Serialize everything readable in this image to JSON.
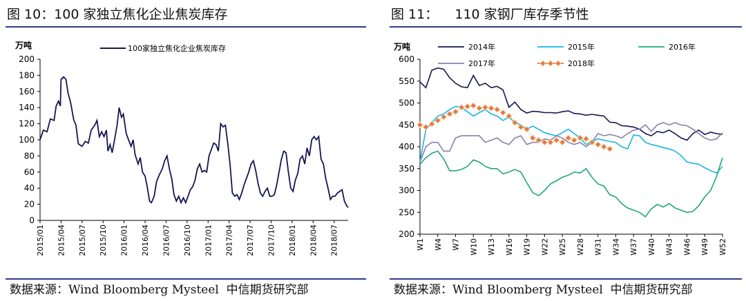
{
  "panels": {
    "left": {
      "figure_title": "图 10：100 家独立焦化企业焦炭库存",
      "source_label": "数据来源：",
      "source_providers": "Wind Bloomberg Mysteel",
      "source_org": "中信期货研究部"
    },
    "right": {
      "figure_title": "图 11：    110 家钢厂库存季节性",
      "source_label": "数据来源：",
      "source_providers": "Wind Bloomberg Mysteel",
      "source_org": "中信期货研究部"
    }
  },
  "colors": {
    "rule": "#2a3a8c",
    "axis": "#000000"
  },
  "chart_data": [
    {
      "type": "line",
      "title": "",
      "ylabel": "万吨",
      "xlabel": "",
      "ylim": [
        0,
        200
      ],
      "yticks": [
        0,
        20,
        40,
        60,
        80,
        100,
        120,
        140,
        160,
        180,
        200
      ],
      "xlim": [
        "2015-01",
        "2018-09"
      ],
      "xtick_labels": [
        "2015/01",
        "2015/04",
        "2015/07",
        "2015/10",
        "2016/01",
        "2016/04",
        "2016/07",
        "2016/10",
        "2017/01",
        "2017/04",
        "2017/07",
        "2017/10",
        "2018/01",
        "2018/04",
        "2018/07"
      ],
      "grid": false,
      "legend_position": "top",
      "series": [
        {
          "name": "100家独立焦化企业焦炭库存",
          "color": "#14154f",
          "points": [
            [
              "2015-01",
              100
            ],
            [
              "2015-01-15",
              112
            ],
            [
              "2015-02",
              110
            ],
            [
              "2015-02-15",
              126
            ],
            [
              "2015-03",
              124
            ],
            [
              "2015-03-10",
              142
            ],
            [
              "2015-03-20",
              148
            ],
            [
              "2015-03-28",
              142
            ],
            [
              "2015-04",
              175
            ],
            [
              "2015-04-12",
              178
            ],
            [
              "2015-04-22",
              175
            ],
            [
              "2015-05",
              158
            ],
            [
              "2015-05-12",
              146
            ],
            [
              "2015-05-25",
              125
            ],
            [
              "2015-06-05",
              118
            ],
            [
              "2015-06-15",
              95
            ],
            [
              "2015-07",
              92
            ],
            [
              "2015-07-15",
              98
            ],
            [
              "2015-07-28",
              96
            ],
            [
              "2015-08-10",
              112
            ],
            [
              "2015-08-25",
              118
            ],
            [
              "2015-09-05",
              124
            ],
            [
              "2015-09-15",
              104
            ],
            [
              "2015-09-25",
              110
            ],
            [
              "2015-10-05",
              104
            ],
            [
              "2015-10-15",
              112
            ],
            [
              "2015-10-22",
              86
            ],
            [
              "2015-11-01",
              94
            ],
            [
              "2015-11-10",
              84
            ],
            [
              "2015-11-20",
              100
            ],
            [
              "2015-12-01",
              118
            ],
            [
              "2015-12-10",
              140
            ],
            [
              "2015-12-20",
              128
            ],
            [
              "2015-12-28",
              132
            ],
            [
              "2016-01-10",
              108
            ],
            [
              "2016-01-20",
              100
            ],
            [
              "2016-02-01",
              92
            ],
            [
              "2016-02-10",
              100
            ],
            [
              "2016-02-18",
              82
            ],
            [
              "2016-03-01",
              70
            ],
            [
              "2016-03-10",
              78
            ],
            [
              "2016-03-20",
              60
            ],
            [
              "2016-04-01",
              55
            ],
            [
              "2016-04-10",
              42
            ],
            [
              "2016-04-20",
              24
            ],
            [
              "2016-04-28",
              22
            ],
            [
              "2016-05-10",
              30
            ],
            [
              "2016-05-20",
              48
            ],
            [
              "2016-06-01",
              56
            ],
            [
              "2016-06-15",
              64
            ],
            [
              "2016-06-25",
              74
            ],
            [
              "2016-07-05",
              80
            ],
            [
              "2016-07-15",
              64
            ],
            [
              "2016-07-25",
              52
            ],
            [
              "2016-08-05",
              32
            ],
            [
              "2016-08-15",
              24
            ],
            [
              "2016-08-25",
              30
            ],
            [
              "2016-09-05",
              22
            ],
            [
              "2016-09-15",
              28
            ],
            [
              "2016-09-25",
              22
            ],
            [
              "2016-10-05",
              30
            ],
            [
              "2016-10-15",
              38
            ],
            [
              "2016-10-25",
              42
            ],
            [
              "2016-11-05",
              50
            ],
            [
              "2016-11-15",
              64
            ],
            [
              "2016-11-25",
              70
            ],
            [
              "2016-12-05",
              60
            ],
            [
              "2016-12-15",
              62
            ],
            [
              "2016-12-25",
              60
            ],
            [
              "2017-01-05",
              80
            ],
            [
              "2017-01-15",
              88
            ],
            [
              "2017-01-25",
              96
            ],
            [
              "2017-02-05",
              94
            ],
            [
              "2017-02-15",
              86
            ],
            [
              "2017-02-25",
              120
            ],
            [
              "2017-03-05",
              116
            ],
            [
              "2017-03-15",
              118
            ],
            [
              "2017-03-25",
              96
            ],
            [
              "2017-04-05",
              70
            ],
            [
              "2017-04-15",
              34
            ],
            [
              "2017-04-25",
              30
            ],
            [
              "2017-05-05",
              32
            ],
            [
              "2017-05-15",
              26
            ],
            [
              "2017-05-25",
              34
            ],
            [
              "2017-06-05",
              44
            ],
            [
              "2017-06-15",
              52
            ],
            [
              "2017-06-25",
              60
            ],
            [
              "2017-07-05",
              70
            ],
            [
              "2017-07-15",
              74
            ],
            [
              "2017-07-25",
              62
            ],
            [
              "2017-08-05",
              46
            ],
            [
              "2017-08-15",
              34
            ],
            [
              "2017-08-25",
              30
            ],
            [
              "2017-09-05",
              36
            ],
            [
              "2017-09-15",
              40
            ],
            [
              "2017-09-25",
              30
            ],
            [
              "2017-10-05",
              30
            ],
            [
              "2017-10-15",
              32
            ],
            [
              "2017-10-25",
              44
            ],
            [
              "2017-11-05",
              60
            ],
            [
              "2017-11-15",
              76
            ],
            [
              "2017-11-25",
              86
            ],
            [
              "2017-12-05",
              84
            ],
            [
              "2017-12-15",
              60
            ],
            [
              "2017-12-25",
              40
            ],
            [
              "2018-01-05",
              36
            ],
            [
              "2018-01-15",
              50
            ],
            [
              "2018-01-25",
              58
            ],
            [
              "2018-02-05",
              76
            ],
            [
              "2018-02-15",
              80
            ],
            [
              "2018-02-25",
              70
            ],
            [
              "2018-03-05",
              90
            ],
            [
              "2018-03-15",
              80
            ],
            [
              "2018-03-25",
              100
            ],
            [
              "2018-04-05",
              104
            ],
            [
              "2018-04-15",
              100
            ],
            [
              "2018-04-25",
              104
            ],
            [
              "2018-05-05",
              76
            ],
            [
              "2018-05-15",
              70
            ],
            [
              "2018-05-25",
              52
            ],
            [
              "2018-06-05",
              40
            ],
            [
              "2018-06-15",
              26
            ],
            [
              "2018-06-25",
              30
            ],
            [
              "2018-07-05",
              30
            ],
            [
              "2018-07-15",
              34
            ],
            [
              "2018-07-25",
              36
            ],
            [
              "2018-08-05",
              38
            ],
            [
              "2018-08-15",
              24
            ],
            [
              "2018-08-25",
              18
            ],
            [
              "2018-09-01",
              16
            ]
          ]
        }
      ]
    },
    {
      "type": "line",
      "title": "",
      "ylabel": "万吨",
      "xlabel": "",
      "ylim": [
        200,
        600
      ],
      "yticks": [
        200,
        250,
        300,
        350,
        400,
        450,
        500,
        550,
        600
      ],
      "xlim": [
        1,
        52
      ],
      "xtick_labels": [
        "W1",
        "W4",
        "W7",
        "W10",
        "W13",
        "W16",
        "W19",
        "W22",
        "W25",
        "W28",
        "W31",
        "W34",
        "W37",
        "W40",
        "W43",
        "W46",
        "W49",
        "W52"
      ],
      "xtick_values": [
        1,
        4,
        7,
        10,
        13,
        16,
        19,
        22,
        25,
        28,
        31,
        34,
        37,
        40,
        43,
        46,
        49,
        52
      ],
      "grid": false,
      "legend_position": "top",
      "series": [
        {
          "name": "2014年",
          "color": "#14154f",
          "marker": "none",
          "values": [
            548,
            535,
            575,
            580,
            577,
            558,
            545,
            537,
            535,
            563,
            540,
            545,
            535,
            538,
            530,
            490,
            502,
            485,
            477,
            481,
            480,
            478,
            478,
            477,
            480,
            482,
            476,
            475,
            472,
            474,
            472,
            470,
            456,
            455,
            448,
            447,
            445,
            440,
            430,
            425,
            435,
            432,
            438,
            430,
            420,
            415,
            430,
            438,
            428,
            433,
            430,
            428
          ]
        },
        {
          "name": "2015年",
          "color": "#19b4e6",
          "marker": "none",
          "values": [
            365,
            440,
            455,
            470,
            475,
            485,
            492,
            490,
            480,
            470,
            478,
            485,
            475,
            470,
            460,
            468,
            455,
            450,
            440,
            447,
            440,
            432,
            428,
            425,
            432,
            440,
            430,
            420,
            405,
            412,
            418,
            415,
            412,
            410,
            400,
            395,
            427,
            425,
            410,
            405,
            402,
            398,
            395,
            390,
            380,
            365,
            362,
            360,
            352,
            345,
            340,
            355
          ]
        },
        {
          "name": "2016年",
          "color": "#20a67a",
          "marker": "none",
          "values": [
            360,
            375,
            385,
            390,
            372,
            345,
            345,
            348,
            355,
            370,
            365,
            355,
            350,
            350,
            338,
            342,
            348,
            342,
            318,
            295,
            288,
            300,
            315,
            322,
            330,
            335,
            342,
            340,
            350,
            330,
            315,
            310,
            290,
            285,
            270,
            260,
            255,
            250,
            240,
            258,
            268,
            262,
            270,
            260,
            255,
            250,
            252,
            265,
            285,
            300,
            332,
            375
          ]
        },
        {
          "name": "2017年",
          "color": "#8a7fa8",
          "marker": "none",
          "values": [
            365,
            400,
            410,
            410,
            390,
            390,
            420,
            425,
            425,
            425,
            425,
            410,
            415,
            420,
            410,
            405,
            420,
            425,
            405,
            410,
            410,
            418,
            415,
            425,
            420,
            410,
            405,
            410,
            400,
            410,
            430,
            425,
            428,
            425,
            420,
            430,
            438,
            440,
            450,
            435,
            450,
            455,
            450,
            455,
            450,
            448,
            440,
            430,
            420,
            415,
            418,
            432
          ]
        },
        {
          "name": "2018年",
          "color": "#e07a3a",
          "marker": "diamond",
          "values": [
            450,
            445,
            452,
            460,
            468,
            475,
            480,
            490,
            492,
            494,
            488,
            490,
            488,
            485,
            478,
            470,
            455,
            445,
            440,
            420,
            415,
            410,
            410,
            415,
            410,
            420,
            415,
            420,
            418,
            410,
            405,
            400,
            395
          ]
        }
      ]
    }
  ]
}
